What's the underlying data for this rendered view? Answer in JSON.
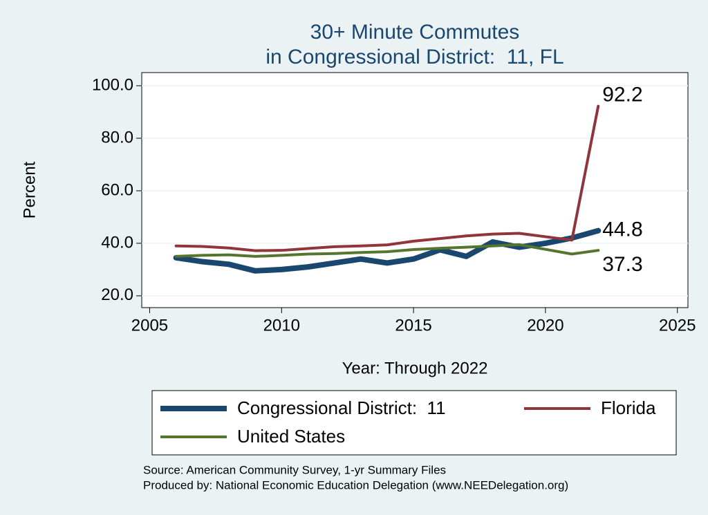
{
  "chart_data": {
    "type": "line",
    "title": [
      "30+ Minute Commutes",
      "in Congressional District:  11, FL"
    ],
    "x_label": "Year: Through 2022",
    "y_label": "Percent",
    "x": [
      2006,
      2007,
      2008,
      2009,
      2010,
      2011,
      2012,
      2013,
      2014,
      2015,
      2016,
      2017,
      2018,
      2019,
      2020,
      2021,
      2022
    ],
    "series": [
      {
        "name": "Congressional District:  11",
        "color": "#1a476f",
        "values": [
          34.5,
          33,
          32,
          29.5,
          30,
          31,
          32.5,
          34,
          32.5,
          34,
          37.5,
          35,
          40.5,
          38.5,
          40,
          42,
          44.8
        ]
      },
      {
        "name": "Florida",
        "color": "#90353b",
        "values": [
          39,
          38.8,
          38.2,
          37.2,
          37.3,
          38,
          38.7,
          39,
          39.4,
          40.8,
          41.8,
          42.8,
          43.5,
          43.8,
          42.5,
          41.2,
          92.2
        ]
      },
      {
        "name": "United States",
        "color": "#55752f",
        "values": [
          35,
          35.4,
          35.6,
          35,
          35.4,
          35.9,
          36.1,
          36.5,
          36.8,
          37.6,
          38.1,
          38.5,
          39,
          39.5,
          37.7,
          35.9,
          37.3
        ]
      }
    ],
    "xlim": [
      2004.7,
      2025.4
    ],
    "xticks": [
      2005,
      2010,
      2015,
      2020,
      2025
    ],
    "ylim": [
      15.5,
      105
    ],
    "yticks": [
      {
        "value": 20,
        "label": "20.0"
      },
      {
        "value": 40,
        "label": "40.0"
      },
      {
        "value": 60,
        "label": "60.0"
      },
      {
        "value": 80,
        "label": "80.0"
      },
      {
        "value": 100,
        "label": "100.0"
      }
    ],
    "grid": true,
    "notes": [
      "Source: American Community Survey, 1-yr Summary Files",
      "Produced by: National Economic Education Delegation (www.NEEDelegation.org)"
    ]
  }
}
